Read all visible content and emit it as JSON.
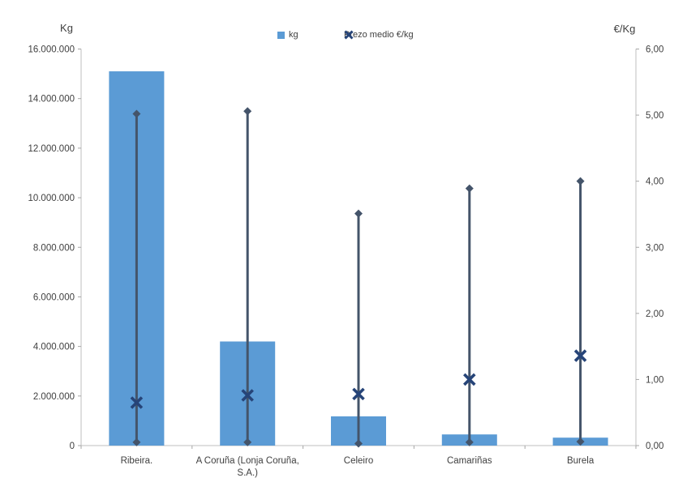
{
  "chart_data": {
    "type": "bar",
    "title": "",
    "categories": [
      "Ribeira.",
      "A Coruña (Lonja Coruña, S.A.)",
      "Celeiro",
      "Camariñas",
      "Burela"
    ],
    "series": [
      {
        "name": "kg",
        "kind": "bar",
        "axis": "left",
        "color": "#5B9BD5",
        "values": [
          15100000,
          4200000,
          1180000,
          450000,
          320000
        ]
      },
      {
        "name": "Prezo medio €/kg",
        "kind": "scatter-x",
        "axis": "right",
        "color": "#264478",
        "values": [
          0.65,
          0.76,
          0.78,
          1.0,
          1.36
        ]
      },
      {
        "name": "high-low-lines",
        "kind": "hilo",
        "axis": "right",
        "color": "#44546A",
        "min": [
          0.05,
          0.05,
          0.03,
          0.05,
          0.06
        ],
        "max": [
          5.02,
          5.06,
          3.51,
          3.89,
          4.0
        ]
      }
    ],
    "left_axis": {
      "label": "Kg",
      "min": 0,
      "max": 16000000,
      "step": 2000000,
      "tick_labels": [
        "0",
        "2.000.000",
        "4.000.000",
        "6.000.000",
        "8.000.000",
        "10.000.000",
        "12.000.000",
        "14.000.000",
        "16.000.000"
      ]
    },
    "right_axis": {
      "label": "€/Kg",
      "min": 0,
      "max": 6,
      "step": 1,
      "tick_labels": [
        "0,00",
        "1,00",
        "2,00",
        "3,00",
        "4,00",
        "5,00",
        "6,00"
      ]
    },
    "grid": false,
    "legend_position": "top",
    "colors": {
      "bar": "#5B9BD5",
      "x_marker": "#264478",
      "hilo_line": "#44546A",
      "axis_line": "#BFBFBF",
      "tick": "#A6A6A6",
      "text": "#3F3F3F"
    }
  }
}
